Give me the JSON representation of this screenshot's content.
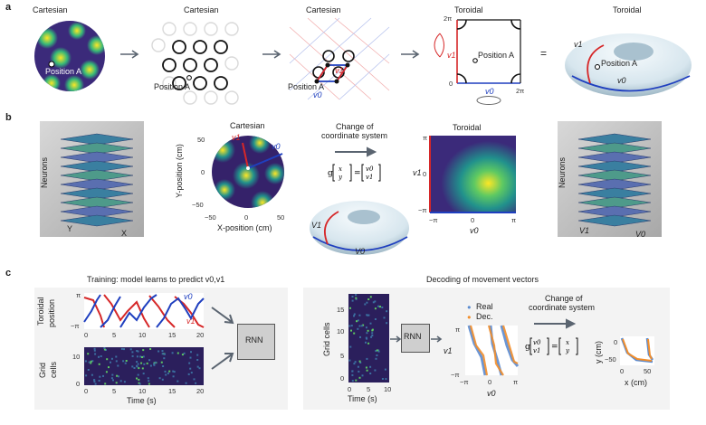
{
  "panels": {
    "a": {
      "label": "a",
      "titles": [
        "Cartesian",
        "Cartesian",
        "Cartesian",
        "Toroidal",
        "Toroidal"
      ],
      "position_label": "Position A",
      "v0": "v0",
      "v1": "v1",
      "twopi": "2π",
      "zero": "0",
      "equals": "="
    },
    "b": {
      "label": "b",
      "neurons": "Neurons",
      "Y": "Y",
      "X": "X",
      "cartesian_title": "Cartesian",
      "y_axis_label": "Y-position (cm)",
      "x_axis_label": "X-position (cm)",
      "y_ticks": [
        "50",
        "0",
        "−50"
      ],
      "x_ticks": [
        "−50",
        "0",
        "50"
      ],
      "change_line1": "Change of",
      "change_line2": "coordinate system",
      "toroidal_title": "Toroidal",
      "v1_axis": "v1",
      "v0_axis": "v0",
      "pi_ticks_y": [
        "π",
        "0",
        "−π"
      ],
      "pi_ticks_x": [
        "−π",
        "0",
        "π"
      ],
      "v1": "V1",
      "v0": "V0"
    },
    "c": {
      "label": "c",
      "training_title": "Training: model learns to predict v0,v1",
      "toroidal_position_line1": "Toroidal",
      "toroidal_position_line2": "position",
      "grid_cells_line1": "Grid",
      "grid_cells_line2": "cells",
      "y_pi": "π",
      "y_negpi": "−π",
      "v0": "v0",
      "v1": "v1",
      "grid_y_ticks": [
        "10",
        "0"
      ],
      "time_ticks": [
        "0",
        "5",
        "10",
        "15",
        "20"
      ],
      "time_label": "Time (s)",
      "rnn": "RNN",
      "decoding_title": "Decoding of movement vectors",
      "grid_cells_vertical": "Grid cells",
      "dec_y_ticks": [
        "15",
        "10",
        "5",
        "0"
      ],
      "dec_x_ticks": [
        "0",
        "5",
        "10"
      ],
      "legend_real": "Real",
      "legend_dec": "Dec.",
      "v1_label": "v1",
      "v0_label": "v0",
      "torus_ticks": [
        "−π",
        "0",
        "π"
      ],
      "change_line1": "Change of",
      "change_line2": "coordinate system",
      "y_cm": "y (cm)",
      "x_cm": "x (cm)",
      "final_y_ticks": [
        "0",
        "−50"
      ],
      "final_x_ticks": [
        "0",
        "50"
      ]
    }
  },
  "colors": {
    "red": "#d62728",
    "blue": "#1f3fbf",
    "orange": "#f28e2b",
    "lightblue": "#5b8bd0",
    "panel_bg": "#f3f3f3",
    "arrow": "#5a6470"
  }
}
